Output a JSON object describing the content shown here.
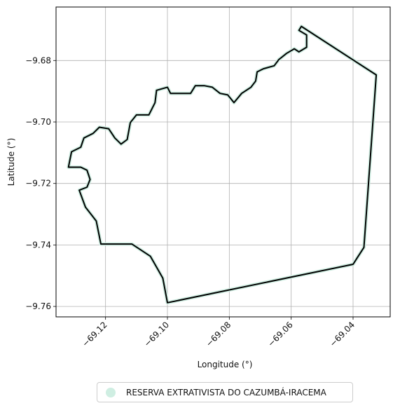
{
  "chart_data": {
    "type": "map",
    "xlabel": "Longitude (°)",
    "ylabel": "Latitude (°)",
    "xlim": [
      -69.136,
      -69.028
    ],
    "ylim": [
      -9.7634,
      -9.6626
    ],
    "x_ticks": [
      -69.12,
      -69.1,
      -69.08,
      -69.06,
      -69.04
    ],
    "x_tick_labels": [
      "−69.12",
      "−69.10",
      "−69.08",
      "−69.06",
      "−69.04"
    ],
    "y_ticks": [
      -9.68,
      -9.7,
      -9.72,
      -9.74,
      -9.76
    ],
    "y_tick_labels": [
      "−9.68",
      "−9.70",
      "−9.72",
      "−9.74",
      "−9.76"
    ],
    "grid": true,
    "legend_position": "bottom-center",
    "fill_color": "#cfeee2",
    "boundary_color": "#000000",
    "series": [
      {
        "name": "RESERVA EXTRATIVISTA DO CAZUMBÁ-IRACEMA",
        "boundary": [
          [
            -69.0567,
            -9.6689
          ],
          [
            -69.0325,
            -9.6847
          ],
          [
            -69.0365,
            -9.7408
          ],
          [
            -69.04,
            -9.7463
          ],
          [
            -69.1,
            -9.7588
          ],
          [
            -69.1015,
            -9.7508
          ],
          [
            -69.1055,
            -9.7437
          ],
          [
            -69.1115,
            -9.7397
          ],
          [
            -69.1215,
            -9.7397
          ],
          [
            -69.123,
            -9.7322
          ],
          [
            -69.1265,
            -9.7277
          ],
          [
            -69.1285,
            -9.7222
          ],
          [
            -69.126,
            -9.7212
          ],
          [
            -69.125,
            -9.7187
          ],
          [
            -69.126,
            -9.7157
          ],
          [
            -69.128,
            -9.7147
          ],
          [
            -69.132,
            -9.7147
          ],
          [
            -69.131,
            -9.7097
          ],
          [
            -69.128,
            -9.7082
          ],
          [
            -69.127,
            -9.7052
          ],
          [
            -69.124,
            -9.7037
          ],
          [
            -69.122,
            -9.7017
          ],
          [
            -69.119,
            -9.7022
          ],
          [
            -69.117,
            -9.7052
          ],
          [
            -69.115,
            -9.7072
          ],
          [
            -69.113,
            -9.7057
          ],
          [
            -69.112,
            -9.7002
          ],
          [
            -69.11,
            -9.6977
          ],
          [
            -69.106,
            -9.6977
          ],
          [
            -69.104,
            -9.6937
          ],
          [
            -69.1035,
            -9.6897
          ],
          [
            -69.1,
            -9.6887
          ],
          [
            -69.099,
            -9.6907
          ],
          [
            -69.095,
            -9.6907
          ],
          [
            -69.0925,
            -9.6907
          ],
          [
            -69.091,
            -9.6882
          ],
          [
            -69.088,
            -9.6882
          ],
          [
            -69.0855,
            -9.6887
          ],
          [
            -69.083,
            -9.6907
          ],
          [
            -69.0805,
            -9.6912
          ],
          [
            -69.0785,
            -9.6937
          ],
          [
            -69.076,
            -9.6907
          ],
          [
            -69.073,
            -9.6887
          ],
          [
            -69.0715,
            -9.6867
          ],
          [
            -69.071,
            -9.6837
          ],
          [
            -69.069,
            -9.6827
          ],
          [
            -69.0655,
            -9.6817
          ],
          [
            -69.064,
            -9.6797
          ],
          [
            -69.0615,
            -9.6777
          ],
          [
            -69.059,
            -9.6762
          ],
          [
            -69.0575,
            -9.6772
          ],
          [
            -69.055,
            -9.6757
          ],
          [
            -69.055,
            -9.6717
          ],
          [
            -69.0575,
            -9.6702
          ]
        ]
      }
    ]
  }
}
